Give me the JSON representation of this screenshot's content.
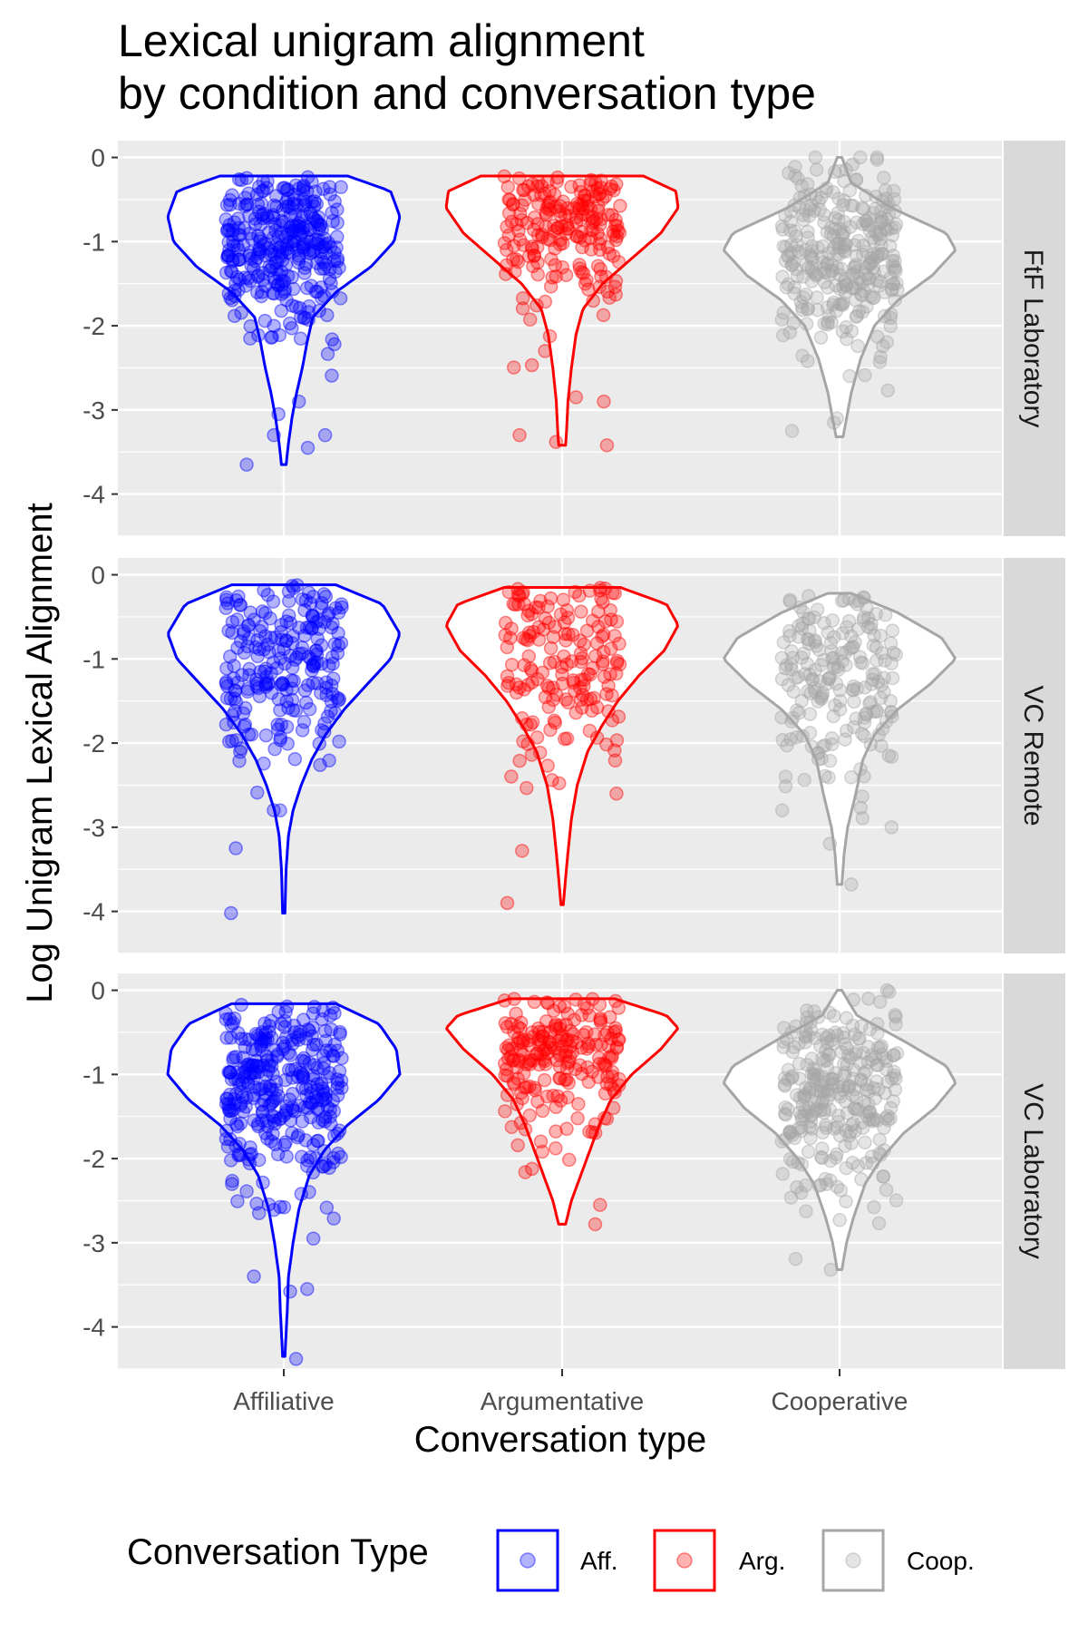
{
  "chart_data": {
    "type": "violin",
    "title_line1": "Lexical unigram alignment",
    "title_line2": "by condition and conversation type",
    "xlabel": "Conversation type",
    "ylabel": "Log Unigram Lexical Alignment",
    "categories": [
      "Affiliative",
      "Argumentative",
      "Cooperative"
    ],
    "ylim": [
      -4.5,
      0.2
    ],
    "y_ticks": [
      0,
      -1,
      -2,
      -3,
      -4
    ],
    "y_tick_labels": [
      "0",
      "-1",
      "-2",
      "-3",
      "-4"
    ],
    "grid": true,
    "facets": [
      {
        "label": "FtF Laboratory",
        "violins": [
          {
            "series": "Aff.",
            "min": -3.65,
            "max": -0.22,
            "profile": [
              [
                -0.22,
                0.55
              ],
              [
                -0.4,
                0.92
              ],
              [
                -0.7,
                1.0
              ],
              [
                -1.0,
                0.95
              ],
              [
                -1.3,
                0.75
              ],
              [
                -1.6,
                0.45
              ],
              [
                -1.9,
                0.25
              ],
              [
                -2.2,
                0.2
              ],
              [
                -2.5,
                0.16
              ],
              [
                -2.8,
                0.11
              ],
              [
                -3.1,
                0.07
              ],
              [
                -3.4,
                0.04
              ],
              [
                -3.65,
                0.02
              ]
            ],
            "points": 320,
            "median": -1.0,
            "spread": 0.55,
            "outliers": [
              -3.45,
              -3.3,
              -3.65,
              -3.3,
              -3.05,
              -2.9
            ]
          },
          {
            "series": "Arg.",
            "min": -3.42,
            "max": -0.22,
            "profile": [
              [
                -0.22,
                0.7
              ],
              [
                -0.4,
                0.98
              ],
              [
                -0.6,
                1.0
              ],
              [
                -0.9,
                0.85
              ],
              [
                -1.2,
                0.6
              ],
              [
                -1.5,
                0.35
              ],
              [
                -1.8,
                0.18
              ],
              [
                -2.1,
                0.12
              ],
              [
                -2.5,
                0.08
              ],
              [
                -2.9,
                0.05
              ],
              [
                -3.2,
                0.04
              ],
              [
                -3.42,
                0.03
              ]
            ],
            "points": 200,
            "median": -0.8,
            "spread": 0.5,
            "outliers": [
              -3.38,
              -3.42,
              -3.3,
              -2.9,
              -2.85
            ]
          },
          {
            "series": "Coop.",
            "min": -3.32,
            "max": 0.0,
            "profile": [
              [
                0.0,
                0.02
              ],
              [
                -0.3,
                0.1
              ],
              [
                -0.6,
                0.45
              ],
              [
                -0.9,
                0.92
              ],
              [
                -1.1,
                1.0
              ],
              [
                -1.4,
                0.8
              ],
              [
                -1.7,
                0.5
              ],
              [
                -2.0,
                0.3
              ],
              [
                -2.4,
                0.18
              ],
              [
                -2.8,
                0.1
              ],
              [
                -3.1,
                0.06
              ],
              [
                -3.32,
                0.03
              ]
            ],
            "points": 300,
            "median": -1.2,
            "spread": 0.55,
            "outliers": [
              -3.25,
              -3.15,
              -3.1,
              0.0,
              0.0,
              0.0
            ]
          }
        ]
      },
      {
        "label": "VC Remote",
        "violins": [
          {
            "series": "Aff.",
            "min": -4.02,
            "max": -0.12,
            "profile": [
              [
                -0.12,
                0.45
              ],
              [
                -0.35,
                0.85
              ],
              [
                -0.7,
                1.0
              ],
              [
                -1.0,
                0.92
              ],
              [
                -1.3,
                0.72
              ],
              [
                -1.6,
                0.52
              ],
              [
                -1.9,
                0.36
              ],
              [
                -2.2,
                0.24
              ],
              [
                -2.5,
                0.15
              ],
              [
                -2.8,
                0.08
              ],
              [
                -3.1,
                0.04
              ],
              [
                -3.5,
                0.02
              ],
              [
                -4.02,
                0.01
              ]
            ],
            "points": 230,
            "median": -1.1,
            "spread": 0.6,
            "outliers": [
              -4.02,
              -3.25,
              -2.8
            ]
          },
          {
            "series": "Arg.",
            "min": -3.92,
            "max": -0.15,
            "profile": [
              [
                -0.15,
                0.5
              ],
              [
                -0.35,
                0.9
              ],
              [
                -0.6,
                1.0
              ],
              [
                -0.9,
                0.88
              ],
              [
                -1.2,
                0.66
              ],
              [
                -1.5,
                0.48
              ],
              [
                -1.8,
                0.34
              ],
              [
                -2.1,
                0.22
              ],
              [
                -2.5,
                0.13
              ],
              [
                -2.9,
                0.08
              ],
              [
                -3.3,
                0.05
              ],
              [
                -3.6,
                0.03
              ],
              [
                -3.92,
                0.01
              ]
            ],
            "points": 170,
            "median": -0.9,
            "spread": 0.65,
            "outliers": [
              -3.9,
              -3.28,
              -2.6
            ]
          },
          {
            "series": "Coop.",
            "min": -3.68,
            "max": -0.22,
            "profile": [
              [
                -0.22,
                0.1
              ],
              [
                -0.45,
                0.5
              ],
              [
                -0.75,
                0.88
              ],
              [
                -1.0,
                1.0
              ],
              [
                -1.3,
                0.78
              ],
              [
                -1.6,
                0.5
              ],
              [
                -1.9,
                0.3
              ],
              [
                -2.2,
                0.2
              ],
              [
                -2.6,
                0.14
              ],
              [
                -3.0,
                0.07
              ],
              [
                -3.3,
                0.04
              ],
              [
                -3.68,
                0.02
              ]
            ],
            "points": 200,
            "median": -1.2,
            "spread": 0.6,
            "outliers": [
              -3.68,
              -3.0,
              -2.8
            ]
          }
        ]
      },
      {
        "label": "VC Laboratory",
        "violins": [
          {
            "series": "Aff.",
            "min": -4.35,
            "max": -0.16,
            "profile": [
              [
                -0.16,
                0.45
              ],
              [
                -0.4,
                0.82
              ],
              [
                -0.7,
                0.97
              ],
              [
                -1.0,
                1.0
              ],
              [
                -1.3,
                0.82
              ],
              [
                -1.6,
                0.55
              ],
              [
                -1.9,
                0.35
              ],
              [
                -2.2,
                0.22
              ],
              [
                -2.6,
                0.13
              ],
              [
                -3.0,
                0.08
              ],
              [
                -3.4,
                0.04
              ],
              [
                -3.8,
                0.03
              ],
              [
                -4.35,
                0.01
              ]
            ],
            "points": 330,
            "median": -1.1,
            "spread": 0.62,
            "outliers": [
              -4.38,
              -3.55,
              -3.58,
              -3.4,
              -2.95
            ]
          },
          {
            "series": "Arg.",
            "min": -2.78,
            "max": -0.1,
            "profile": [
              [
                -0.1,
                0.45
              ],
              [
                -0.3,
                0.9
              ],
              [
                -0.45,
                1.0
              ],
              [
                -0.7,
                0.85
              ],
              [
                -1.0,
                0.6
              ],
              [
                -1.3,
                0.42
              ],
              [
                -1.6,
                0.32
              ],
              [
                -1.9,
                0.24
              ],
              [
                -2.2,
                0.16
              ],
              [
                -2.5,
                0.08
              ],
              [
                -2.78,
                0.03
              ]
            ],
            "points": 210,
            "median": -0.7,
            "spread": 0.55,
            "outliers": [
              -2.78,
              -2.55
            ]
          },
          {
            "series": "Coop.",
            "min": -3.32,
            "max": 0.0,
            "profile": [
              [
                0.0,
                0.02
              ],
              [
                -0.3,
                0.15
              ],
              [
                -0.6,
                0.55
              ],
              [
                -0.9,
                0.92
              ],
              [
                -1.1,
                1.0
              ],
              [
                -1.4,
                0.82
              ],
              [
                -1.7,
                0.55
              ],
              [
                -2.0,
                0.36
              ],
              [
                -2.3,
                0.22
              ],
              [
                -2.7,
                0.12
              ],
              [
                -3.0,
                0.06
              ],
              [
                -3.32,
                0.02
              ]
            ],
            "points": 290,
            "median": -1.2,
            "spread": 0.6,
            "outliers": [
              -3.32,
              0.0
            ]
          }
        ]
      }
    ],
    "legend": {
      "title": "Conversation Type",
      "position": "bottom",
      "items": [
        {
          "label": "Aff.",
          "color": "#0000ff"
        },
        {
          "label": "Arg.",
          "color": "#ff0000"
        },
        {
          "label": "Coop.",
          "color": "#a6a6a6"
        }
      ]
    },
    "colors": {
      "panel_bg": "#ebebeb",
      "strip_bg": "#d9d9d9",
      "grid": "#ffffff"
    }
  }
}
